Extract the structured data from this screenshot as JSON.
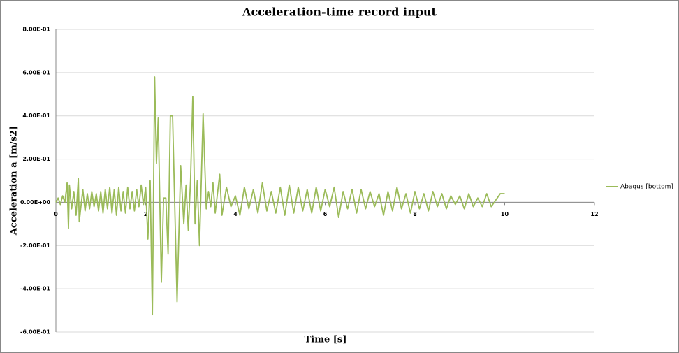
{
  "chart_data": {
    "type": "line",
    "title": "Acceleration-time record input",
    "x_label": "Time [s]",
    "y_label": "Acceleration a [m/s2]",
    "xlim": [
      0,
      12
    ],
    "xticks": [
      0,
      2,
      4,
      6,
      8,
      10,
      12
    ],
    "ylim": [
      -0.6,
      0.8
    ],
    "yticks": [
      {
        "value": -0.6,
        "label": "-6.00E-01"
      },
      {
        "value": -0.4,
        "label": "-4.00E-01"
      },
      {
        "value": -0.2,
        "label": "-2.00E-01"
      },
      {
        "value": 0,
        "label": "0.00E+00"
      },
      {
        "value": 0.2,
        "label": "2.00E-01"
      },
      {
        "value": 0.4,
        "label": "4.00E-01"
      },
      {
        "value": 0.6,
        "label": "6.00E-01"
      },
      {
        "value": 0.8,
        "label": "8.00E-01"
      }
    ],
    "grid": true,
    "legend": "right",
    "x": [
      0,
      0.05,
      0.1,
      0.15,
      0.2,
      0.25,
      0.28,
      0.3,
      0.35,
      0.4,
      0.45,
      0.5,
      0.52,
      0.6,
      0.65,
      0.7,
      0.75,
      0.8,
      0.85,
      0.9,
      0.95,
      1.0,
      1.05,
      1.1,
      1.15,
      1.2,
      1.25,
      1.3,
      1.35,
      1.4,
      1.45,
      1.5,
      1.55,
      1.6,
      1.65,
      1.7,
      1.75,
      1.8,
      1.85,
      1.9,
      1.95,
      2.0,
      2.05,
      2.1,
      2.15,
      2.2,
      2.24,
      2.28,
      2.35,
      2.4,
      2.45,
      2.5,
      2.55,
      2.6,
      2.7,
      2.78,
      2.85,
      2.9,
      2.95,
      3.0,
      3.05,
      3.1,
      3.15,
      3.2,
      3.28,
      3.35,
      3.4,
      3.45,
      3.5,
      3.55,
      3.6,
      3.65,
      3.7,
      3.8,
      3.9,
      4.0,
      4.1,
      4.2,
      4.3,
      4.4,
      4.5,
      4.6,
      4.7,
      4.8,
      4.9,
      5.0,
      5.1,
      5.2,
      5.3,
      5.4,
      5.5,
      5.6,
      5.7,
      5.8,
      5.9,
      6.0,
      6.1,
      6.2,
      6.3,
      6.4,
      6.5,
      6.6,
      6.7,
      6.8,
      6.9,
      7.0,
      7.1,
      7.2,
      7.3,
      7.4,
      7.5,
      7.6,
      7.7,
      7.8,
      7.9,
      8.0,
      8.1,
      8.2,
      8.3,
      8.4,
      8.5,
      8.6,
      8.7,
      8.8,
      8.9,
      9.0,
      9.1,
      9.2,
      9.3,
      9.4,
      9.5,
      9.6,
      9.7,
      9.8,
      9.9,
      10.0
    ],
    "series": [
      {
        "name": "Abaqus [bottom]",
        "color": "#9bbb59",
        "values": [
          0,
          0.02,
          -0.01,
          0.03,
          0.0,
          0.09,
          -0.12,
          0.08,
          -0.03,
          0.05,
          -0.06,
          0.11,
          -0.09,
          0.06,
          -0.04,
          0.04,
          -0.03,
          0.05,
          -0.02,
          0.04,
          -0.04,
          0.05,
          -0.05,
          0.06,
          -0.03,
          0.07,
          -0.05,
          0.06,
          -0.06,
          0.07,
          -0.04,
          0.05,
          -0.05,
          0.07,
          -0.03,
          0.05,
          -0.04,
          0.06,
          -0.02,
          0.08,
          -0.01,
          0.07,
          -0.17,
          0.1,
          -0.52,
          0.58,
          0.18,
          0.39,
          -0.37,
          0.02,
          0.02,
          -0.24,
          0.4,
          0.4,
          -0.46,
          0.17,
          -0.1,
          0.08,
          -0.13,
          0.1,
          0.49,
          -0.1,
          0.1,
          -0.2,
          0.41,
          -0.03,
          0.05,
          -0.02,
          0.09,
          -0.05,
          0.04,
          0.13,
          -0.06,
          0.07,
          -0.02,
          0.03,
          -0.06,
          0.07,
          -0.03,
          0.06,
          -0.05,
          0.09,
          -0.04,
          0.05,
          -0.05,
          0.07,
          -0.06,
          0.08,
          -0.05,
          0.07,
          -0.04,
          0.06,
          -0.05,
          0.07,
          -0.04,
          0.06,
          -0.02,
          0.07,
          -0.07,
          0.05,
          -0.03,
          0.06,
          -0.05,
          0.06,
          -0.03,
          0.05,
          -0.02,
          0.04,
          -0.06,
          0.05,
          -0.04,
          0.07,
          -0.03,
          0.04,
          -0.05,
          0.05,
          -0.03,
          0.04,
          -0.04,
          0.05,
          -0.02,
          0.04,
          -0.03,
          0.03,
          -0.01,
          0.03,
          -0.03,
          0.04,
          -0.02,
          0.02,
          -0.02,
          0.04,
          -0.02,
          0.01,
          0.04,
          0.04
        ]
      }
    ]
  }
}
